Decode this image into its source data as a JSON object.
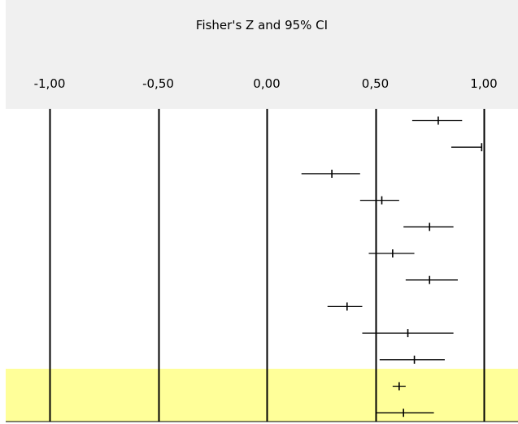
{
  "chart_data": {
    "type": "scatter",
    "title": "Fisher's Z and 95% CI",
    "xlabel": "",
    "ylabel": "",
    "xlim": [
      -1.0,
      1.0
    ],
    "x_ticks": [
      -1.0,
      -0.5,
      0.0,
      0.5,
      1.0
    ],
    "x_tick_labels": [
      "-1,00",
      "-0,50",
      "0,00",
      "0,50",
      "1,00"
    ],
    "grid": true,
    "series": [
      {
        "values": [
          {
            "z": 0.79,
            "lower": 0.67,
            "upper": 0.9
          },
          {
            "z": 0.99,
            "lower": 0.85,
            "upper": 0.99
          },
          {
            "z": 0.3,
            "lower": 0.16,
            "upper": 0.43
          },
          {
            "z": 0.53,
            "lower": 0.43,
            "upper": 0.61
          },
          {
            "z": 0.75,
            "lower": 0.63,
            "upper": 0.86
          },
          {
            "z": 0.58,
            "lower": 0.47,
            "upper": 0.68
          },
          {
            "z": 0.75,
            "lower": 0.64,
            "upper": 0.88
          },
          {
            "z": 0.37,
            "lower": 0.28,
            "upper": 0.44
          },
          {
            "z": 0.65,
            "lower": 0.44,
            "upper": 0.86
          },
          {
            "z": 0.68,
            "lower": 0.52,
            "upper": 0.82
          }
        ]
      },
      {
        "values": [
          {
            "z": 0.61,
            "lower": 0.58,
            "upper": 0.64
          },
          {
            "z": 0.63,
            "lower": 0.5,
            "upper": 0.77
          }
        ]
      }
    ],
    "colors": {
      "header_background": "#f0f0f0",
      "summary_band": "#ffff99",
      "lines": "#000000"
    }
  }
}
